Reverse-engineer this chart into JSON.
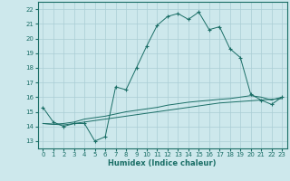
{
  "title": "",
  "xlabel": "Humidex (Indice chaleur)",
  "background_color": "#cde8ec",
  "grid_color": "#aacdd4",
  "line_color": "#1a6e66",
  "xlim": [
    -0.5,
    23.5
  ],
  "ylim": [
    12.5,
    22.5
  ],
  "xticks": [
    0,
    1,
    2,
    3,
    4,
    5,
    6,
    7,
    8,
    9,
    10,
    11,
    12,
    13,
    14,
    15,
    16,
    17,
    18,
    19,
    20,
    21,
    22,
    23
  ],
  "yticks": [
    13,
    14,
    15,
    16,
    17,
    18,
    19,
    20,
    21,
    22
  ],
  "line1_x": [
    0,
    1,
    2,
    3,
    4,
    5,
    6,
    7,
    8,
    9,
    10,
    11,
    12,
    13,
    14,
    15,
    16,
    17,
    18,
    19,
    20,
    21,
    22,
    23
  ],
  "line1_y": [
    15.3,
    14.3,
    14.0,
    14.2,
    14.2,
    13.0,
    13.3,
    16.7,
    16.5,
    18.0,
    19.5,
    20.9,
    21.5,
    21.7,
    21.3,
    21.8,
    20.6,
    20.8,
    19.3,
    18.7,
    16.2,
    15.8,
    15.5,
    16.0
  ],
  "line2_x": [
    0,
    1,
    2,
    3,
    4,
    5,
    6,
    7,
    8,
    9,
    10,
    11,
    12,
    13,
    14,
    15,
    16,
    17,
    18,
    19,
    20,
    21,
    22,
    23
  ],
  "line2_y": [
    14.2,
    14.15,
    14.1,
    14.2,
    14.3,
    14.4,
    14.5,
    14.6,
    14.7,
    14.8,
    14.9,
    15.0,
    15.1,
    15.2,
    15.3,
    15.4,
    15.5,
    15.6,
    15.65,
    15.7,
    15.75,
    15.8,
    15.85,
    15.9
  ],
  "line3_x": [
    0,
    1,
    2,
    3,
    4,
    5,
    6,
    7,
    8,
    9,
    10,
    11,
    12,
    13,
    14,
    15,
    16,
    17,
    18,
    19,
    20,
    21,
    22,
    23
  ],
  "line3_y": [
    14.2,
    14.15,
    14.2,
    14.3,
    14.5,
    14.6,
    14.7,
    14.85,
    15.0,
    15.1,
    15.2,
    15.3,
    15.45,
    15.55,
    15.65,
    15.72,
    15.78,
    15.85,
    15.9,
    16.0,
    16.1,
    16.0,
    15.8,
    16.0
  ]
}
